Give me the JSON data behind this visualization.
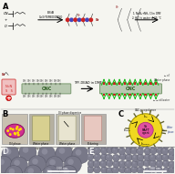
{
  "bg_color": "#f5f5f0",
  "panel_labels": [
    "A",
    "B",
    "C",
    "D",
    "E"
  ],
  "cnc_color": "#b8c8b0",
  "cnc_edge": "#7a9a70",
  "green_color": "#22bb22",
  "red_color": "#cc2222",
  "pink_color": "#e040a0",
  "yellow_color": "#f0d820",
  "gray_sphere_color": "#909090",
  "gray_sphere_edge": "#606060",
  "gray_sphere_highlight": "#b8b8b8",
  "dark_bg": "#3a3a4a",
  "vial1_color": "#d03090",
  "vial2_color": "#d8d090",
  "vial3_color": "#e0dcc0",
  "vial4_color": "#e8c8c0",
  "border_color": "#999999"
}
